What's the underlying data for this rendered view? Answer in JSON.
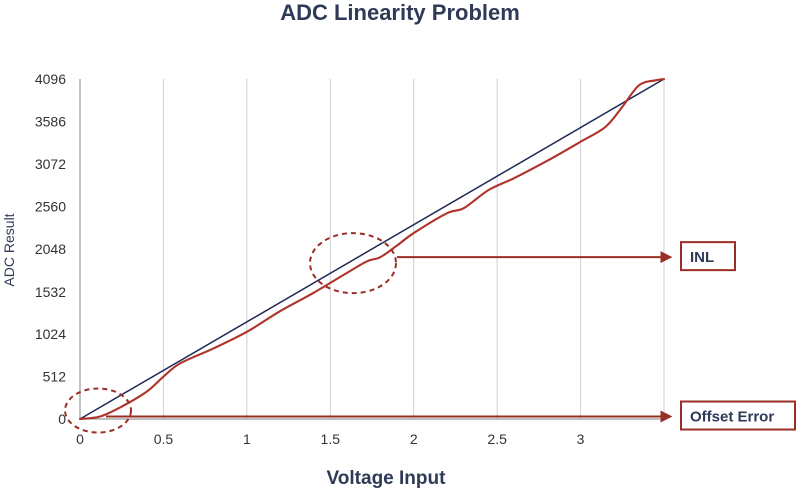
{
  "chart_data": {
    "type": "line",
    "title": "ADC Linearity Problem",
    "xlabel": "Voltage Input",
    "ylabel": "ADC Result",
    "xlim": [
      0,
      3.5
    ],
    "ylim": [
      0,
      4096
    ],
    "x_ticks": [
      {
        "value": 0,
        "label": "0"
      },
      {
        "value": 0.5,
        "label": "0.5"
      },
      {
        "value": 1,
        "label": "1"
      },
      {
        "value": 1.5,
        "label": "1.5"
      },
      {
        "value": 2,
        "label": "2"
      },
      {
        "value": 2.5,
        "label": "2.5"
      },
      {
        "value": 3,
        "label": "3"
      }
    ],
    "y_ticks": [
      {
        "value": 0,
        "label": "0"
      },
      {
        "value": 512,
        "label": "512"
      },
      {
        "value": 1024,
        "label": "1024"
      },
      {
        "value": 1532,
        "label": "1532"
      },
      {
        "value": 2048,
        "label": "2048"
      },
      {
        "value": 2560,
        "label": "2560"
      },
      {
        "value": 3072,
        "label": "3072"
      },
      {
        "value": 3586,
        "label": "3586"
      },
      {
        "value": 4096,
        "label": "4096"
      }
    ],
    "grid": {
      "vertical": true,
      "horizontal": false
    },
    "series": [
      {
        "kind": "ideal",
        "color": "#1f2a55",
        "x": [
          0,
          3.5
        ],
        "y": [
          0,
          4096
        ]
      },
      {
        "kind": "actual",
        "color": "#b0332a",
        "x": [
          0,
          0.12,
          0.25,
          0.4,
          0.5,
          0.6,
          0.8,
          1.0,
          1.2,
          1.4,
          1.6,
          1.72,
          1.8,
          1.9,
          2.0,
          2.2,
          2.3,
          2.45,
          2.6,
          2.8,
          3.0,
          3.15,
          3.25,
          3.35,
          3.45,
          3.5
        ],
        "y": [
          0,
          30,
          150,
          330,
          510,
          670,
          850,
          1050,
          1300,
          1520,
          1760,
          1900,
          1950,
          2090,
          2240,
          2480,
          2540,
          2760,
          2900,
          3110,
          3340,
          3520,
          3760,
          4020,
          4080,
          4096
        ]
      }
    ],
    "annotations": [
      {
        "text": "INL",
        "target_x": 1.72,
        "target_y": 1950,
        "color": "#9a2d24"
      },
      {
        "text": "Offset  Error",
        "target_x": 0.12,
        "target_y": 30,
        "color": "#9a2d24"
      }
    ],
    "colors": {
      "axis": "#999999",
      "grid": "#cfcfcf",
      "title": "#2f3a57",
      "label": "#2f3a57",
      "annotation": "#9a2d24"
    }
  }
}
